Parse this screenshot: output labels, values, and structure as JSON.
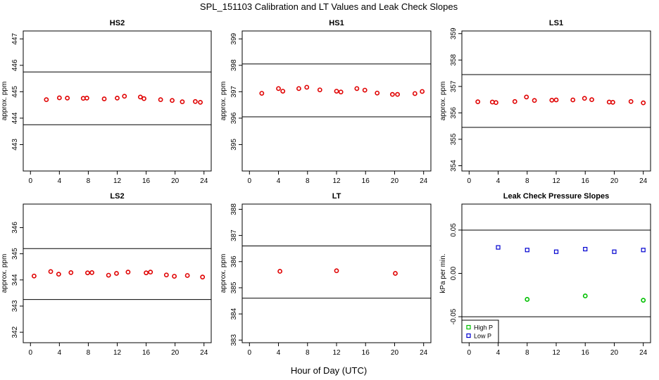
{
  "figure": {
    "title": "SPL_151103  Calibration and LT Values and Leak Check Slopes",
    "xlabel": "Hour of Day (UTC)"
  },
  "chart_data": [
    {
      "type": "scatter",
      "title": "HS2",
      "ylabel": "approx. ppm",
      "xlim": [
        -1,
        25
      ],
      "ylim": [
        442,
        447.3
      ],
      "xticks": [
        0,
        4,
        8,
        12,
        16,
        20,
        24
      ],
      "yticks": [
        443,
        444,
        445,
        446,
        447
      ],
      "hlines": [
        445.75,
        443.75
      ],
      "series": [
        {
          "color": "#e00000",
          "marker": "circle",
          "x": [
            2.2,
            4.0,
            5.1,
            7.3,
            7.8,
            10.2,
            12.0,
            13.0,
            15.2,
            15.7,
            18.0,
            19.6,
            21.0,
            22.8,
            23.5
          ],
          "y": [
            444.7,
            444.77,
            444.76,
            444.75,
            444.76,
            444.73,
            444.76,
            444.83,
            444.8,
            444.74,
            444.7,
            444.67,
            444.62,
            444.63,
            444.6
          ]
        }
      ]
    },
    {
      "type": "scatter",
      "title": "HS1",
      "ylabel": "approx. ppm",
      "xlim": [
        -1,
        25
      ],
      "ylim": [
        394,
        399.3
      ],
      "xticks": [
        0,
        4,
        8,
        12,
        16,
        20,
        24
      ],
      "yticks": [
        395,
        396,
        397,
        398,
        399
      ],
      "hlines": [
        398.05,
        396.05
      ],
      "series": [
        {
          "color": "#e00000",
          "marker": "circle",
          "x": [
            1.7,
            4.0,
            4.6,
            6.8,
            7.9,
            9.7,
            12.0,
            12.6,
            14.8,
            15.9,
            17.6,
            19.7,
            20.4,
            22.8,
            23.8
          ],
          "y": [
            396.94,
            397.12,
            397.02,
            397.12,
            397.17,
            397.07,
            397.02,
            396.99,
            397.12,
            397.06,
            396.95,
            396.9,
            396.9,
            396.93,
            397.01
          ]
        }
      ]
    },
    {
      "type": "scatter",
      "title": "LS1",
      "ylabel": "approx. ppm",
      "xlim": [
        -1,
        25
      ],
      "ylim": [
        353.8,
        359.1
      ],
      "xticks": [
        0,
        4,
        8,
        12,
        16,
        20,
        24
      ],
      "yticks": [
        354,
        355,
        356,
        357,
        358,
        359
      ],
      "hlines": [
        357.45,
        355.45
      ],
      "series": [
        {
          "color": "#e00000",
          "marker": "circle",
          "x": [
            1.2,
            3.2,
            3.7,
            6.3,
            7.9,
            9.0,
            11.4,
            12.0,
            14.3,
            15.9,
            16.9,
            19.3,
            19.8,
            22.3,
            24.0
          ],
          "y": [
            356.42,
            356.41,
            356.39,
            356.43,
            356.6,
            356.47,
            356.48,
            356.49,
            356.49,
            356.55,
            356.5,
            356.41,
            356.4,
            356.43,
            356.38
          ]
        }
      ]
    },
    {
      "type": "scatter",
      "title": "LS2",
      "ylabel": "approx. ppm",
      "xlim": [
        -1,
        25
      ],
      "ylim": [
        341.6,
        346.9
      ],
      "xticks": [
        0,
        4,
        8,
        12,
        16,
        20,
        24
      ],
      "yticks": [
        342,
        343,
        344,
        345,
        346
      ],
      "hlines": [
        345.2,
        343.25
      ],
      "series": [
        {
          "color": "#e00000",
          "marker": "circle",
          "x": [
            0.5,
            2.8,
            3.9,
            5.6,
            7.9,
            8.5,
            10.8,
            11.9,
            13.5,
            16.0,
            16.6,
            18.8,
            19.9,
            21.7,
            23.8
          ],
          "y": [
            344.15,
            344.32,
            344.22,
            344.28,
            344.27,
            344.28,
            344.18,
            344.25,
            344.3,
            344.27,
            344.3,
            344.19,
            344.14,
            344.17,
            344.11
          ]
        }
      ]
    },
    {
      "type": "scatter",
      "title": "LT",
      "ylabel": "approx. ppm",
      "xlim": [
        -1,
        25
      ],
      "ylim": [
        382.9,
        388.2
      ],
      "xticks": [
        0,
        4,
        8,
        12,
        16,
        20,
        24
      ],
      "yticks": [
        383,
        384,
        385,
        386,
        387,
        388
      ],
      "hlines": [
        386.6,
        384.6
      ],
      "series": [
        {
          "color": "#e00000",
          "marker": "circle",
          "x": [
            4.2,
            12.0,
            20.1
          ],
          "y": [
            385.63,
            385.65,
            385.55
          ]
        }
      ]
    },
    {
      "type": "scatter",
      "title": "Leak Check Pressure Slopes",
      "ylabel": "kPa per min.",
      "xlim": [
        -1,
        25
      ],
      "ylim": [
        -0.08,
        0.08
      ],
      "xticks": [
        0,
        4,
        8,
        12,
        16,
        20,
        24
      ],
      "yticks": [
        -0.05,
        0.0,
        0.05
      ],
      "ytick_labels": [
        "-0.05",
        "0.00",
        "0.05"
      ],
      "hlines": [
        0.05,
        -0.05
      ],
      "legend": {
        "position": "bottom-left"
      },
      "series": [
        {
          "name": "High P",
          "color": "#00c000",
          "marker": "circle",
          "x": [
            8.0,
            16.0,
            24.0
          ],
          "y": [
            -0.03,
            -0.026,
            -0.031
          ]
        },
        {
          "name": "Low P",
          "color": "#0000d0",
          "marker": "square",
          "x": [
            4.0,
            8.0,
            12.0,
            16.0,
            20.0,
            24.0
          ],
          "y": [
            0.03,
            0.027,
            0.025,
            0.028,
            0.025,
            0.027
          ]
        }
      ]
    }
  ]
}
